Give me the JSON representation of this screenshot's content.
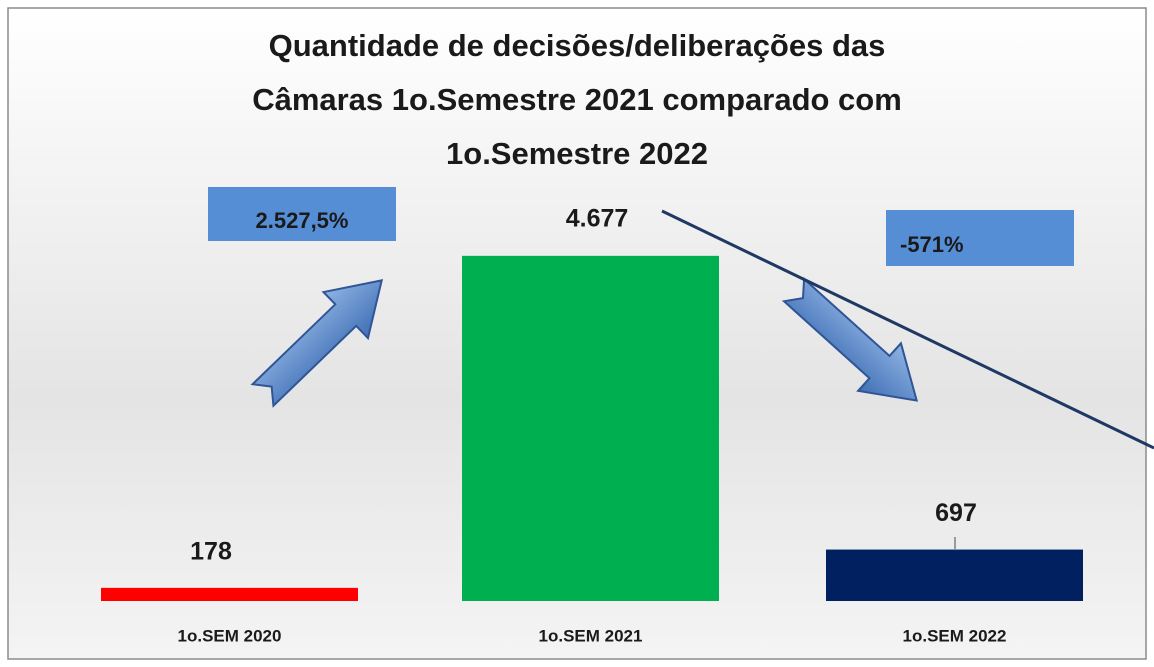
{
  "chart_data": {
    "type": "bar",
    "title": [
      "Quantidade de decisões/deliberações das",
      "Câmaras 1o.Semestre 2021 comparado com",
      "1o.Semestre 2022"
    ],
    "categories": [
      "1o.SEM 2020",
      "1o.SEM 2021",
      "1o.SEM 2022"
    ],
    "values": [
      178,
      4677,
      697
    ],
    "value_labels": [
      "178",
      "4.677",
      "697"
    ],
    "colors": [
      "#ff0000",
      "#00b050",
      "#002060"
    ],
    "ylim": [
      0,
      5000
    ],
    "annotations": [
      "2.527,5%",
      "-571%"
    ]
  }
}
